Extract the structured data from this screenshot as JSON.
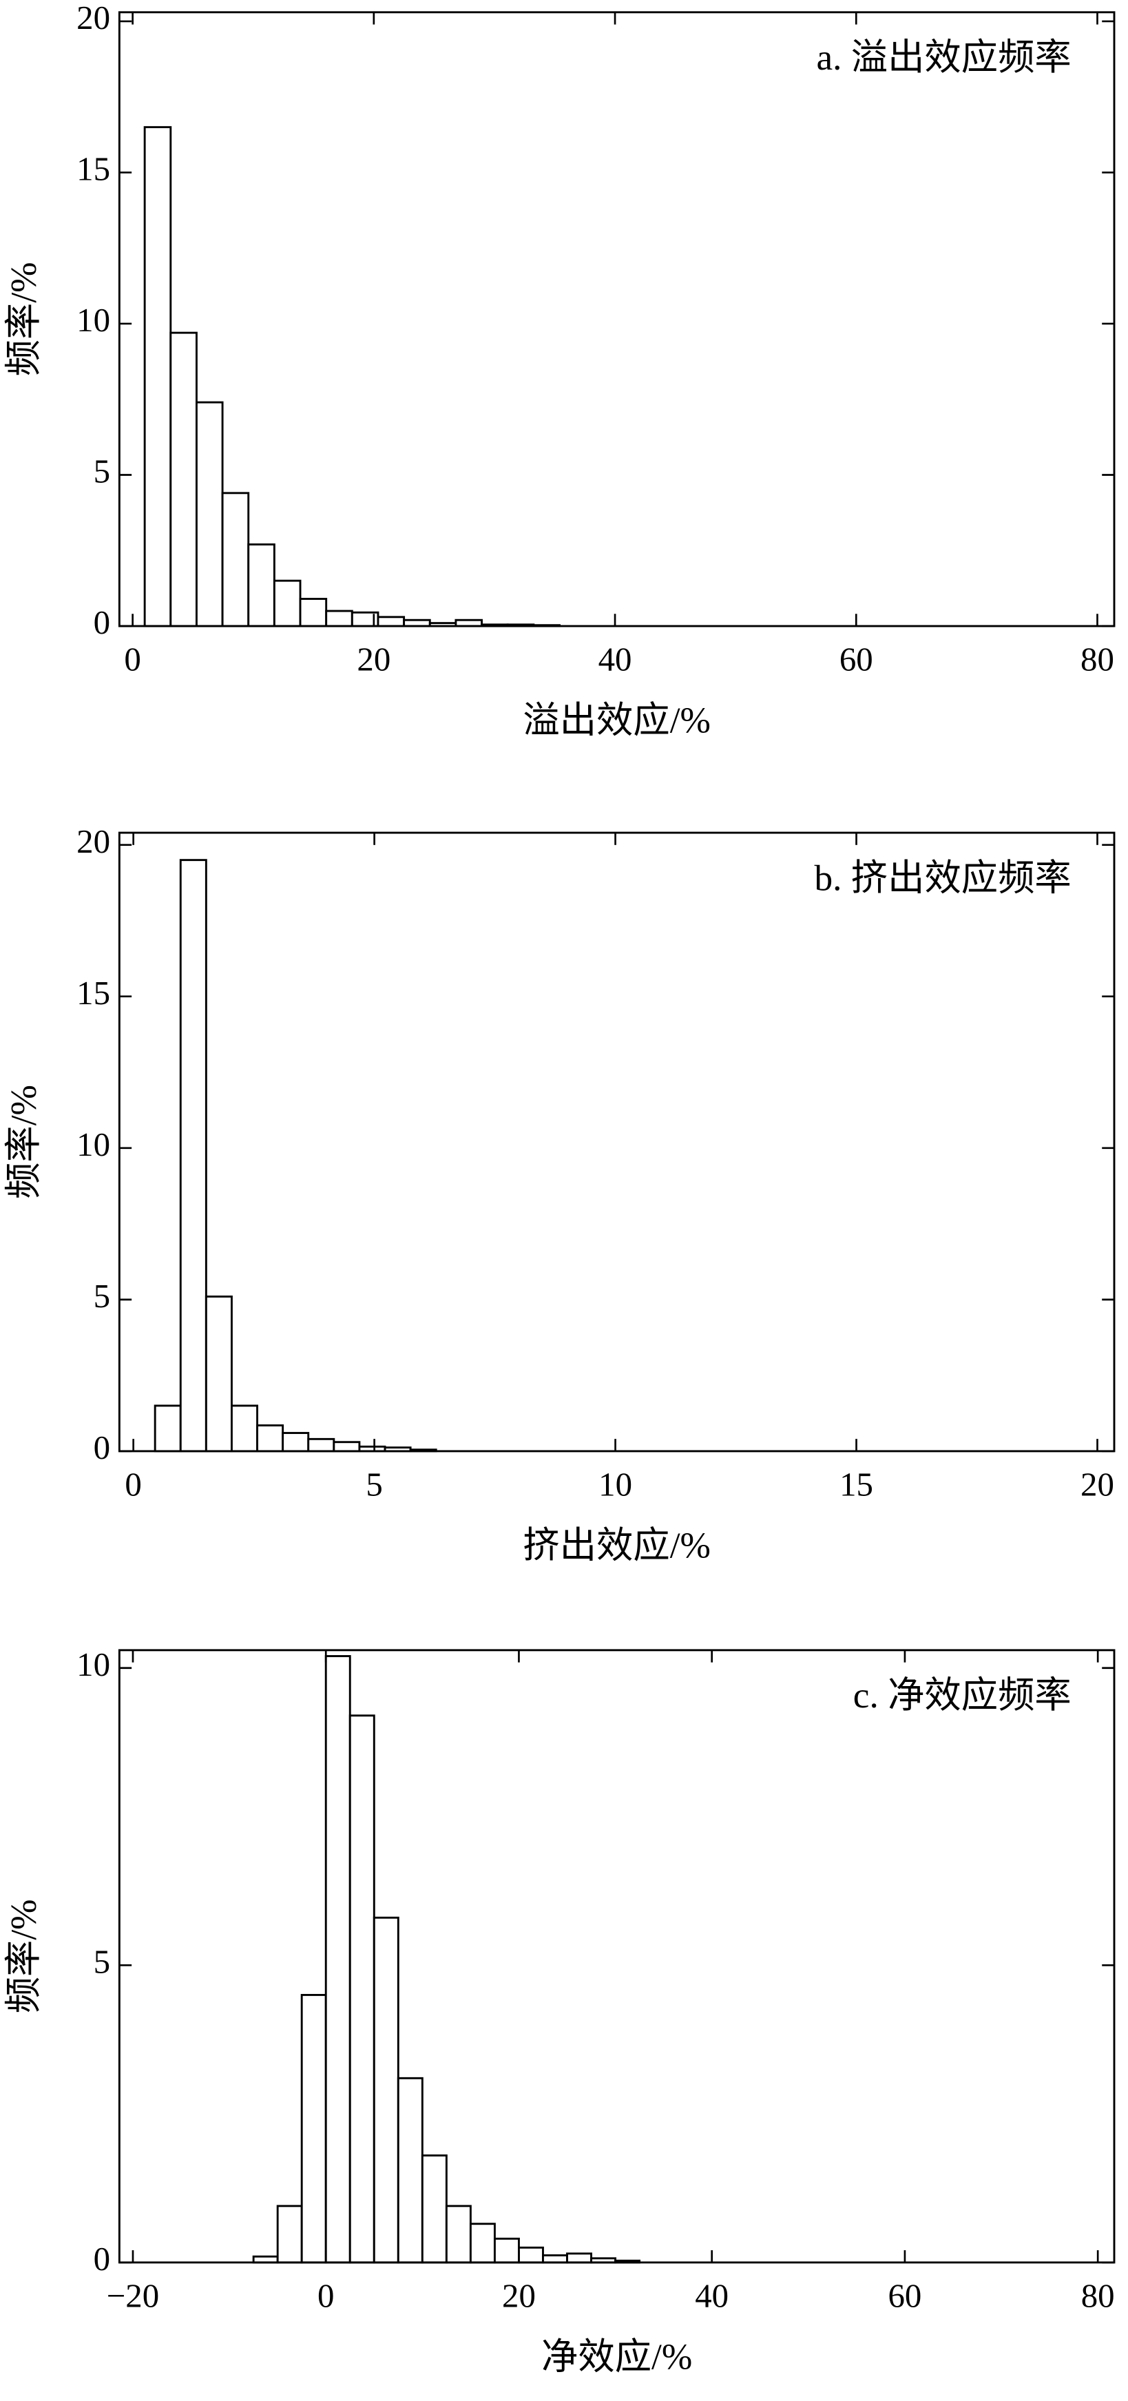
{
  "chart_data": [
    {
      "type": "histogram",
      "title": "a. 溢出效应频率",
      "xlabel": "溢出效应/%",
      "ylabel": "频率/%",
      "bins": [
        1,
        3.15,
        5.3,
        7.45,
        9.6,
        11.75,
        13.9,
        16.05,
        18.2,
        20.35,
        22.5,
        24.65,
        26.8,
        28.95,
        31.1,
        33.25,
        35.4
      ],
      "values": [
        16.5,
        9.7,
        7.4,
        4.4,
        2.7,
        1.5,
        0.9,
        0.5,
        0.45,
        0.3,
        0.2,
        0.1,
        0.2,
        0.05,
        0.05,
        0.03
      ],
      "xlim": [
        -1.1,
        81.4
      ],
      "ylim": [
        0,
        20.3
      ],
      "xticks": [
        0,
        20,
        40,
        60,
        80
      ],
      "yticks": [
        0,
        5,
        10,
        15,
        20
      ]
    },
    {
      "type": "histogram",
      "title": "b. 挤出效应频率",
      "xlabel": "挤出效应/%",
      "ylabel": "频率/%",
      "bins": [
        0.45,
        0.98,
        1.51,
        2.04,
        2.57,
        3.1,
        3.63,
        4.16,
        4.69,
        5.22,
        5.75,
        6.28
      ],
      "values": [
        1.5,
        19.5,
        5.1,
        1.5,
        0.85,
        0.6,
        0.4,
        0.3,
        0.15,
        0.12,
        0.05
      ],
      "xlim": [
        -0.29,
        20.35
      ],
      "ylim": [
        0,
        20.4
      ],
      "xticks": [
        0,
        5,
        10,
        15,
        20
      ],
      "yticks": [
        0,
        5,
        10,
        15,
        20
      ]
    },
    {
      "type": "histogram",
      "title": "c. 净效应频率",
      "xlabel": "净效应/%",
      "ylabel": "频率/%",
      "bins": [
        -7.5,
        -5,
        -2.5,
        0,
        2.5,
        5,
        7.5,
        10,
        12.5,
        15,
        17.5,
        20,
        22.5,
        25,
        27.5,
        30,
        32.5
      ],
      "values": [
        0.1,
        0.95,
        4.5,
        10.2,
        9.2,
        5.8,
        3.1,
        1.8,
        0.95,
        0.65,
        0.4,
        0.25,
        0.12,
        0.15,
        0.07,
        0.03
      ],
      "xlim": [
        -21.4,
        81.7
      ],
      "ylim": [
        0,
        10.3
      ],
      "xticks": [
        {
          "value": -20,
          "label": "−20"
        },
        0,
        20,
        40,
        60,
        80
      ],
      "yticks": [
        0,
        5,
        10
      ]
    }
  ]
}
